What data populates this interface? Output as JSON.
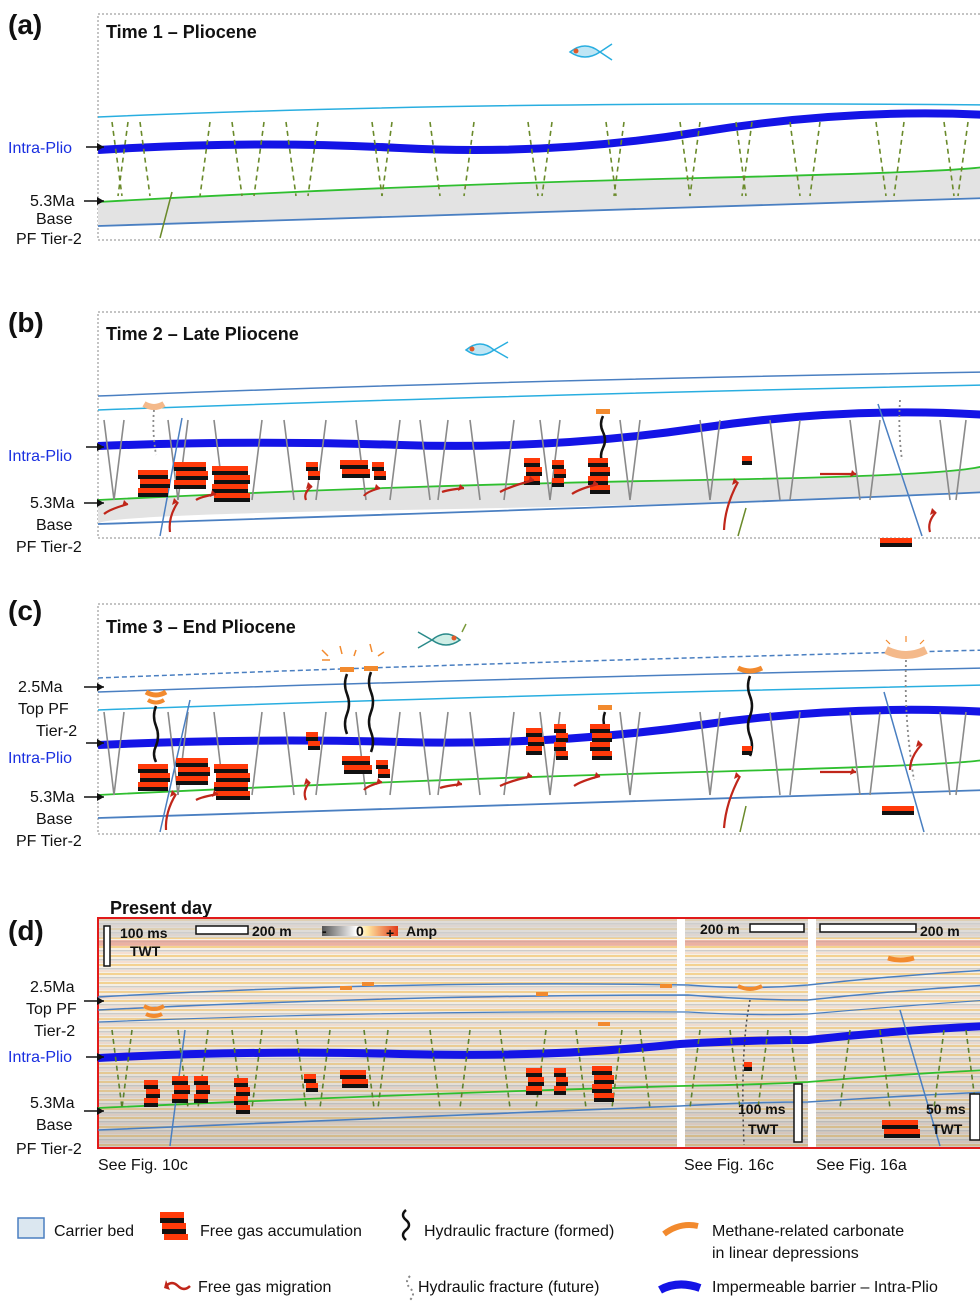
{
  "panels": {
    "a": {
      "letter": "(a)",
      "title": "Time 1 – Pliocene"
    },
    "b": {
      "letter": "(b)",
      "title": "Time 2 – Late Pliocene"
    },
    "c": {
      "letter": "(c)",
      "title": "Time 3 – End Pliocene"
    },
    "d": {
      "letter": "(d)",
      "title": "Present day"
    }
  },
  "horizons": {
    "intra_plio": "Intra-Plio",
    "base_age": "5.3Ma",
    "base_name": "Base",
    "base_tier": "PF Tier-2",
    "top_age": "2.5Ma",
    "top_name": "Top PF",
    "top_name_c": "Top  PF",
    "top_tier": "Tier-2"
  },
  "scales": {
    "ms100": "100 ms",
    "twt": "TWT",
    "m200": "200 m",
    "amp_minus": "-",
    "amp_zero": "0",
    "amp_plus": "+",
    "amp": "Amp",
    "ms50": "50 ms"
  },
  "references": {
    "fig10c": "See Fig. 10c",
    "fig16c": "See Fig. 16c",
    "fig16a": "See Fig. 16a"
  },
  "legend": {
    "carrier_bed": "Carrier bed",
    "free_gas_accumulation": "Free gas accumulation",
    "hydraulic_formed": "Hydraulic fracture (formed)",
    "carbonate_line1": "Methane-related carbonate",
    "carbonate_line2": "in linear depressions",
    "free_gas_migration": "Free gas migration",
    "hydraulic_future": "Hydraulic fracture (future)",
    "impermeable_barrier": "Impermeable barrier – Intra-Plio"
  },
  "colors": {
    "intra_plio_barrier": "#1414e6",
    "base_horizon": "#2fbf2f",
    "shallow_horizon": "#29aee0",
    "deep_horizon": "#4a7fc1",
    "gas_red": "#ff3a0a",
    "carbonate": "#f28a2e",
    "panel_d_border": "#e11a1a",
    "carrier_fill": "#e3e3e3"
  }
}
